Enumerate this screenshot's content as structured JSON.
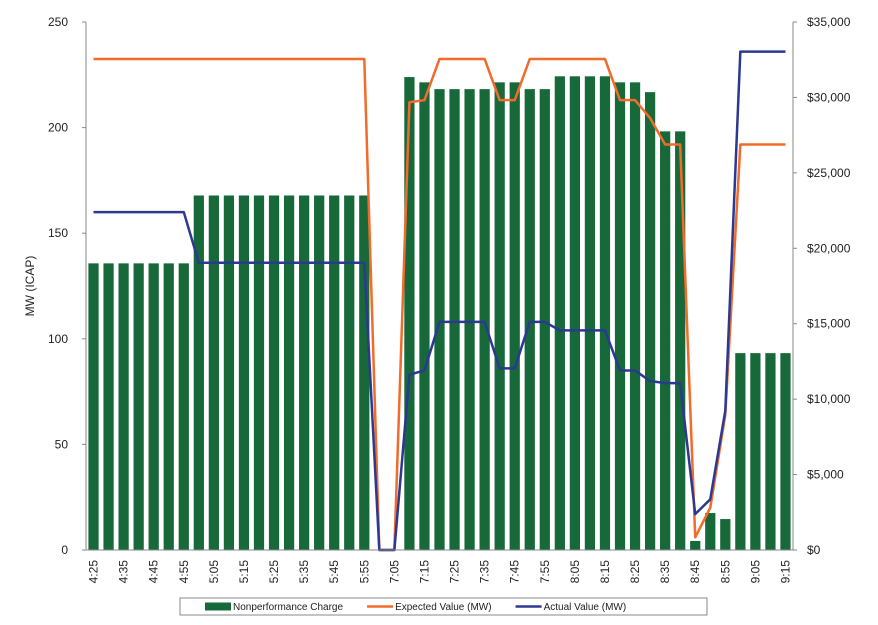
{
  "chart_data": {
    "type": "bar-line",
    "y_label": "MW (ICAP)",
    "categories": [
      "4:25",
      null,
      "4:35",
      null,
      "4:45",
      null,
      "4:55",
      null,
      "5:05",
      null,
      "5:15",
      null,
      "5:25",
      null,
      "5:35",
      null,
      "5:45",
      null,
      "5:55",
      null,
      "7:05",
      null,
      "7:15",
      null,
      "7:25",
      null,
      "7:35",
      null,
      "7:45",
      null,
      "7:55",
      null,
      "8:05",
      null,
      "8:15",
      null,
      "8:25",
      null,
      "8:35",
      null,
      "8:45",
      null,
      "8:55",
      null,
      "9:05",
      null,
      "9:15"
    ],
    "series": [
      {
        "name": "Nonperformance Charge",
        "type": "bar",
        "axis": "y2",
        "color": "#17693a",
        "values": [
          19000,
          19000,
          19000,
          19000,
          19000,
          19000,
          19000,
          23500,
          23500,
          23500,
          23500,
          23500,
          23500,
          23500,
          23500,
          23500,
          23500,
          23500,
          23500,
          0,
          0,
          31350,
          31000,
          30550,
          30550,
          30550,
          30550,
          31000,
          31000,
          30550,
          30550,
          31400,
          31400,
          31400,
          31400,
          31000,
          31000,
          30350,
          27750,
          27750,
          600,
          2450,
          2050,
          13050,
          13050,
          13050,
          13050
        ]
      },
      {
        "name": "Expected Value (MW)",
        "type": "line",
        "color": "#f26b2b",
        "values": [
          232.5,
          232.5,
          232.5,
          232.5,
          232.5,
          232.5,
          232.5,
          232.5,
          232.5,
          232.5,
          232.5,
          232.5,
          232.5,
          232.5,
          232.5,
          232.5,
          232.5,
          232.5,
          232.5,
          0,
          0,
          212,
          213,
          232.5,
          232.5,
          232.5,
          232.5,
          213,
          213,
          232.5,
          232.5,
          232.5,
          232.5,
          232.5,
          232.5,
          213,
          213,
          204.5,
          192,
          192,
          6,
          20,
          64,
          192,
          192,
          192,
          192
        ]
      },
      {
        "name": "Actual Value (MW)",
        "type": "line",
        "color": "#2b3990",
        "values": [
          160,
          160,
          160,
          160,
          160,
          160,
          160,
          136,
          136,
          136,
          136,
          136,
          136,
          136,
          136,
          136,
          136,
          136,
          136,
          0,
          0,
          83,
          85,
          108,
          108,
          108,
          108,
          86,
          86,
          108,
          108,
          104,
          104,
          104,
          104,
          85,
          85,
          80,
          79,
          79,
          17,
          24,
          66,
          236,
          236,
          236,
          236
        ]
      }
    ],
    "ylim": [
      0,
      250
    ],
    "yticks": [
      0,
      50,
      100,
      150,
      200,
      250
    ],
    "y2lim": [
      0,
      35000
    ],
    "y2ticks": [
      {
        "value": 0,
        "label": "$0"
      },
      {
        "value": 5000,
        "label": "$5,000"
      },
      {
        "value": 10000,
        "label": "$10,000"
      },
      {
        "value": 15000,
        "label": "$15,000"
      },
      {
        "value": 20000,
        "label": "$20,000"
      },
      {
        "value": 25000,
        "label": "$25,000"
      },
      {
        "value": 30000,
        "label": "$30,000"
      },
      {
        "value": 35000,
        "label": "$35,000"
      }
    ],
    "legend": "bottom"
  }
}
